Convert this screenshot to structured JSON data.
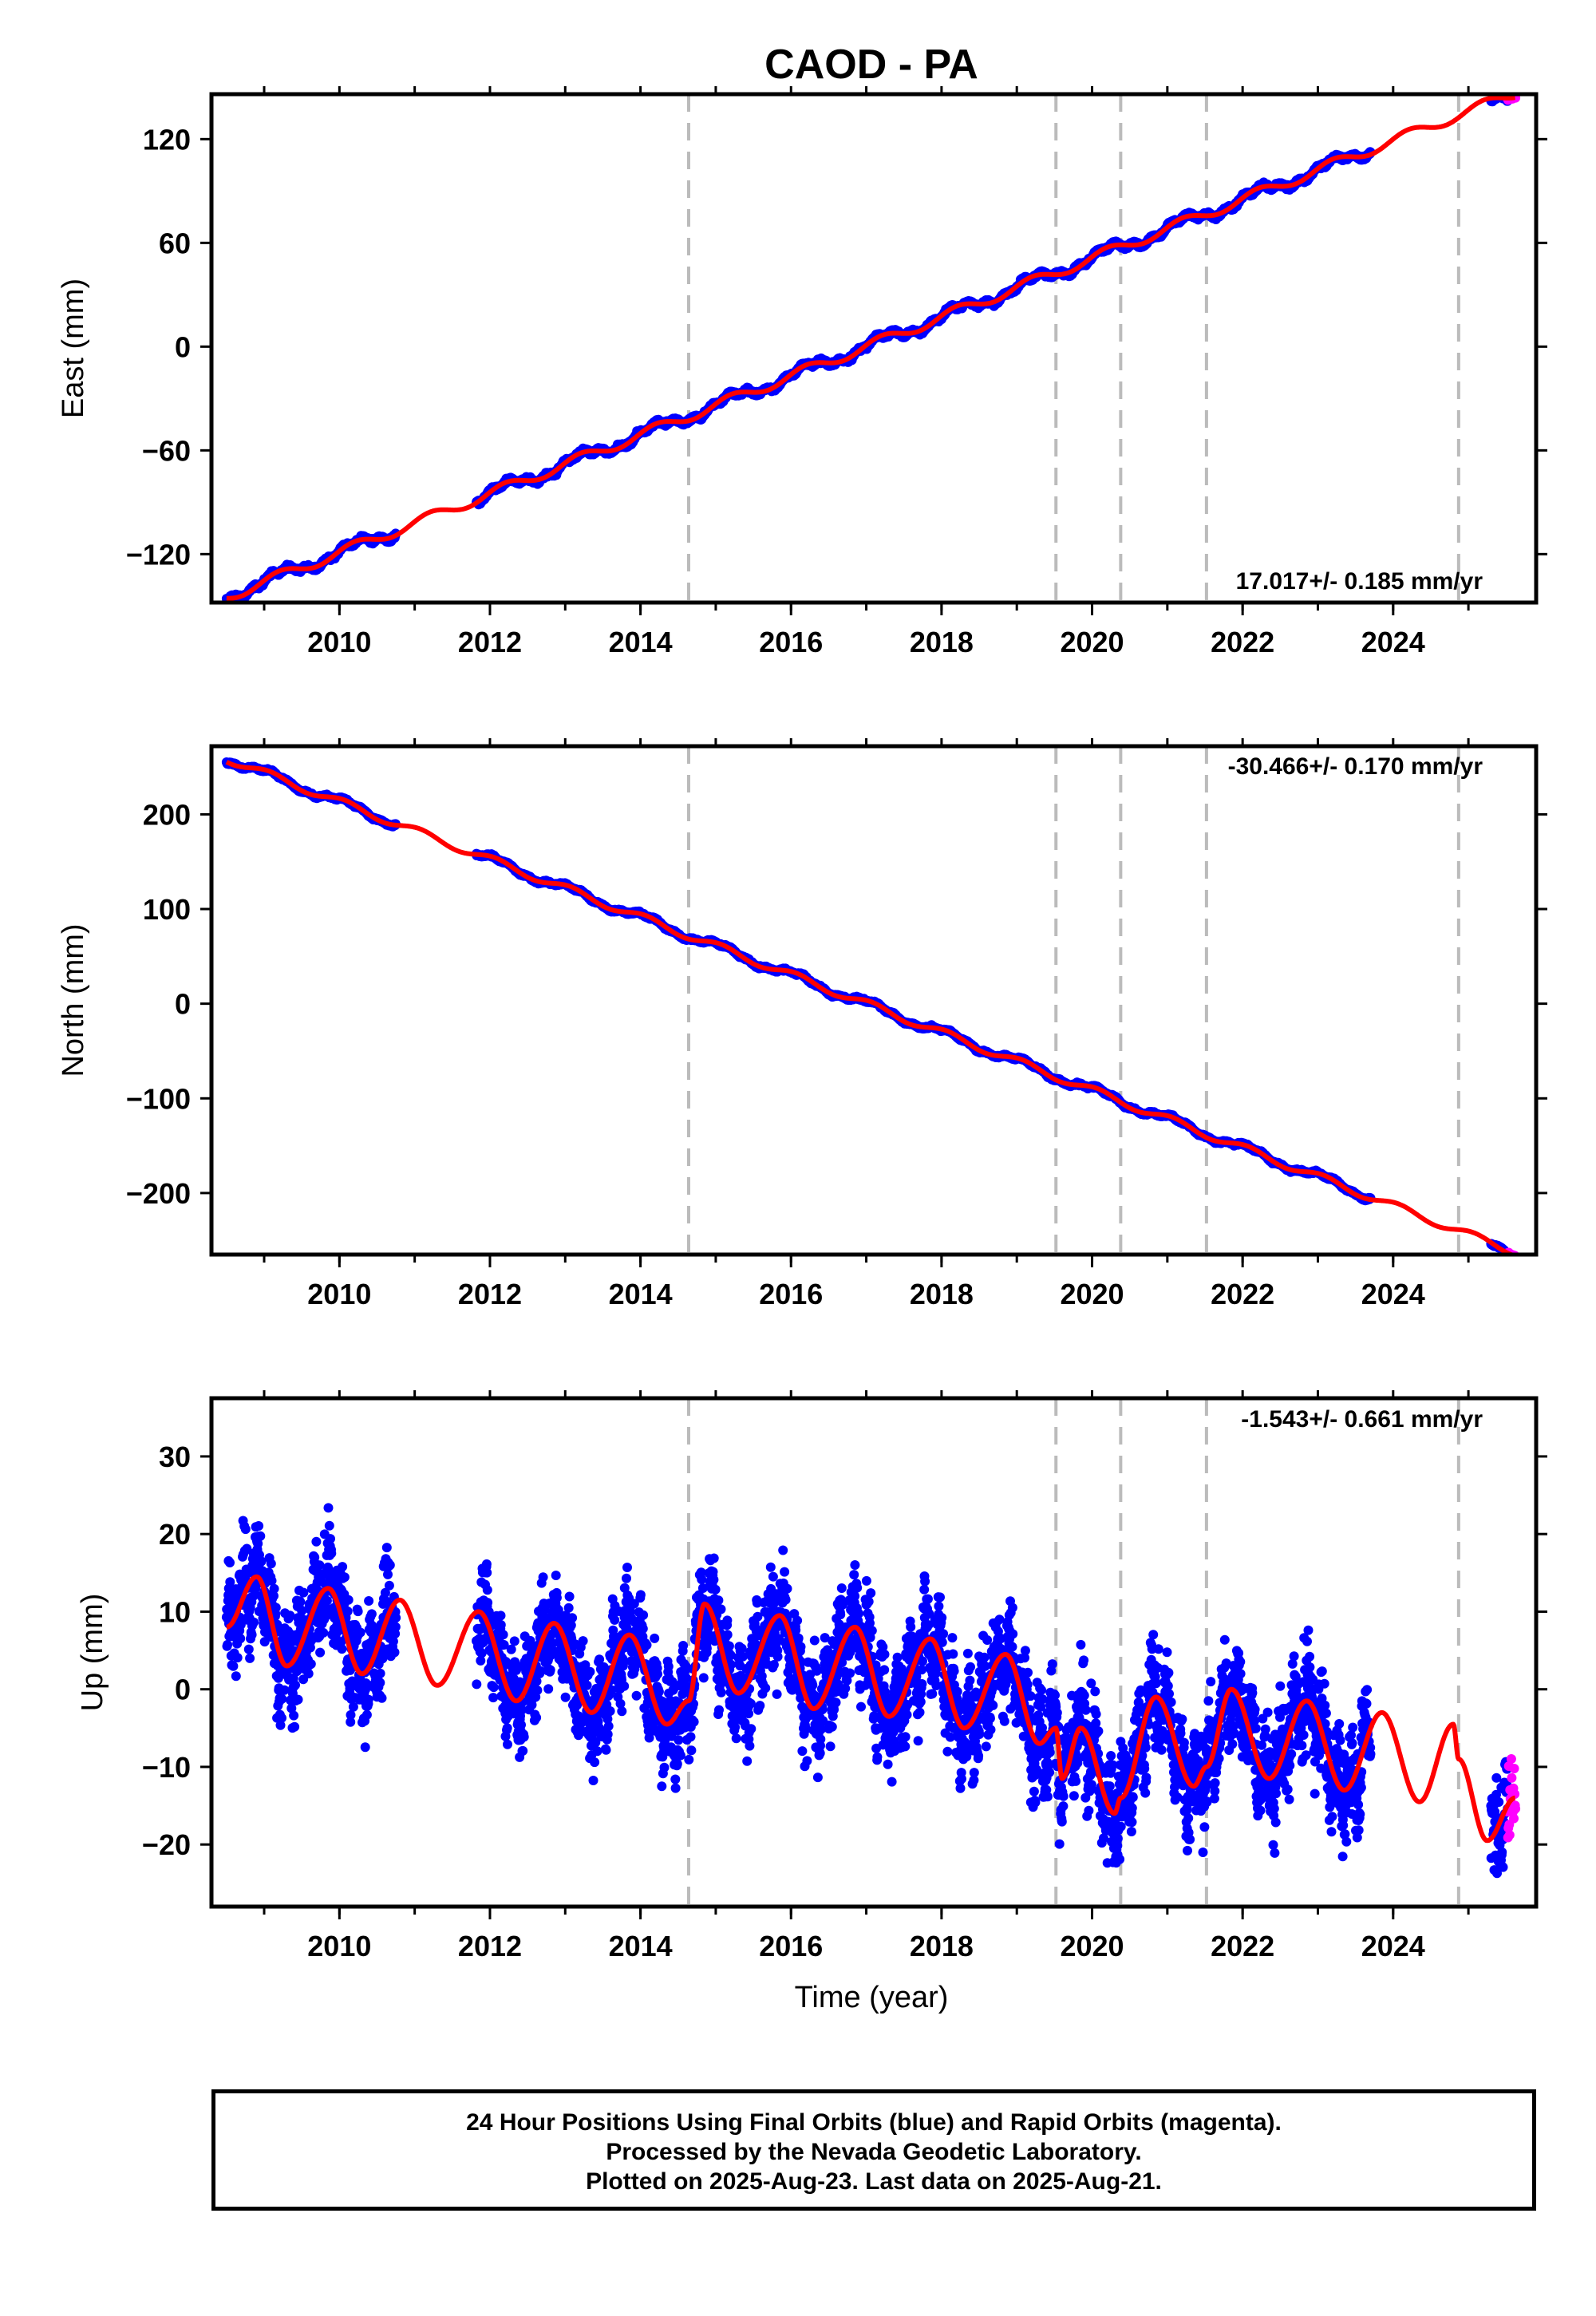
{
  "figure": {
    "title": "CAOD - PA",
    "x_label": "Time (year)",
    "x_ticks": [
      "2010",
      "2012",
      "2014",
      "2016",
      "2018",
      "2020",
      "2022",
      "2024"
    ],
    "events": [
      2014.64,
      2019.52,
      2020.38,
      2021.52,
      2024.87
    ],
    "colors": {
      "final": "#0000ff",
      "rapid": "#ff00ff",
      "model": "#ff0000",
      "event": "#bbbbbb"
    }
  },
  "chart_data": [
    {
      "type": "scatter",
      "component": "east",
      "ylabel": "East (mm)",
      "rate_label": "17.017+/- 0.185 mm/yr",
      "xlim": [
        2008.3,
        2025.9
      ],
      "ylim": [
        -148,
        146
      ],
      "yticks": [
        "120",
        "60",
        "0",
        "-60",
        "-120"
      ],
      "ytick_values": [
        120,
        60,
        0,
        -60,
        -120
      ],
      "trend": {
        "rate": 17.017,
        "value_at_2017": 0
      },
      "seasonal": {
        "amplitude": 3,
        "phase": 0.3
      },
      "noise_mm": 1.5,
      "segments": [
        [
          2008.5,
          2010.75
        ],
        [
          2011.82,
          2023.7
        ],
        [
          2025.3,
          2025.62
        ]
      ],
      "rapid_segment": [
        2025.52,
        2025.63
      ]
    },
    {
      "type": "scatter",
      "component": "north",
      "ylabel": "North (mm)",
      "rate_label": "-30.466+/- 0.170 mm/yr",
      "xlim": [
        2008.3,
        2025.9
      ],
      "ylim": [
        -265,
        272
      ],
      "yticks": [
        "200",
        "100",
        "0",
        "-100",
        "-200"
      ],
      "ytick_values": [
        200,
        100,
        0,
        -100,
        -200
      ],
      "trend": {
        "rate": -30.466,
        "value_at_2017": 0
      },
      "seasonal": {
        "amplitude": 4,
        "phase": 1.1
      },
      "noise_mm": 1.5,
      "segments": [
        [
          2008.5,
          2010.75
        ],
        [
          2011.82,
          2023.7
        ],
        [
          2025.3,
          2025.62
        ]
      ],
      "rapid_segment": [
        2025.52,
        2025.63
      ]
    },
    {
      "type": "scatter",
      "component": "up",
      "ylabel": "Up (mm)",
      "rate_label": "-1.543+/- 0.661 mm/yr",
      "xlim": [
        2008.3,
        2025.9
      ],
      "ylim": [
        -28,
        37.5
      ],
      "yticks": [
        "30",
        "20",
        "10",
        "0",
        "-10",
        "-20"
      ],
      "ytick_values": [
        30,
        20,
        10,
        0,
        -10,
        -20
      ],
      "model_knots": [
        [
          2008.5,
          8
        ],
        [
          2008.9,
          14.5
        ],
        [
          2009.3,
          3
        ],
        [
          2009.85,
          13
        ],
        [
          2010.3,
          2
        ],
        [
          2010.8,
          11.5
        ],
        [
          2011.3,
          0.5
        ],
        [
          2011.85,
          10
        ],
        [
          2012.35,
          -1.5
        ],
        [
          2012.85,
          8.5
        ],
        [
          2013.35,
          -3
        ],
        [
          2013.85,
          7
        ],
        [
          2014.35,
          -4.5
        ],
        [
          2014.64,
          -1.5
        ],
        [
          2014.85,
          11
        ],
        [
          2015.3,
          -0.5
        ],
        [
          2015.85,
          9.5
        ],
        [
          2016.3,
          -2.5
        ],
        [
          2016.85,
          8
        ],
        [
          2017.3,
          -3.5
        ],
        [
          2017.85,
          6.5
        ],
        [
          2018.3,
          -5
        ],
        [
          2018.85,
          4.5
        ],
        [
          2019.3,
          -7
        ],
        [
          2019.52,
          -5
        ],
        [
          2019.6,
          -11.5
        ],
        [
          2019.85,
          -5
        ],
        [
          2020.3,
          -16
        ],
        [
          2020.38,
          -14
        ],
        [
          2020.85,
          -1
        ],
        [
          2021.35,
          -12.5
        ],
        [
          2021.52,
          -10
        ],
        [
          2021.85,
          0
        ],
        [
          2022.35,
          -11.5
        ],
        [
          2022.85,
          -1.5
        ],
        [
          2023.35,
          -13
        ],
        [
          2023.85,
          -3
        ],
        [
          2024.35,
          -14.5
        ],
        [
          2024.8,
          -4.5
        ],
        [
          2024.87,
          -9
        ],
        [
          2025.25,
          -19.5
        ],
        [
          2025.62,
          -14
        ]
      ],
      "noise_mm": 4.2,
      "segments": [
        [
          2008.5,
          2010.75
        ],
        [
          2011.82,
          2023.7
        ],
        [
          2025.3,
          2025.62
        ]
      ],
      "rapid_segment": [
        2025.52,
        2025.63
      ]
    }
  ],
  "caption": {
    "line1": "24 Hour Positions Using Final Orbits (blue) and Rapid Orbits (magenta).",
    "line2": "Processed by the Nevada Geodetic Laboratory.",
    "line3": "Plotted on 2025-Aug-23. Last data on 2025-Aug-21."
  }
}
